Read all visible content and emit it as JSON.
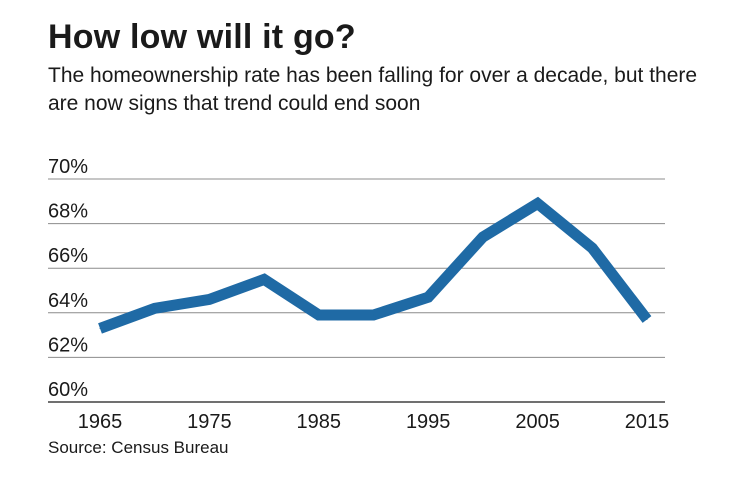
{
  "chart_data": {
    "type": "line",
    "title": "How low will it go?",
    "subtitle": "The homeownership rate has been falling for over a decade, but there are now signs that trend could end soon",
    "source": "Source: Census Bureau",
    "x": [
      1965,
      1970,
      1975,
      1980,
      1985,
      1990,
      1995,
      2000,
      2005,
      2010,
      2015
    ],
    "series": [
      {
        "values": [
          63.3,
          64.2,
          64.6,
          65.5,
          63.9,
          63.9,
          64.7,
          67.4,
          68.9,
          66.9,
          63.7
        ]
      }
    ],
    "ylim": [
      60,
      70
    ],
    "yticks": [
      60,
      62,
      64,
      66,
      68,
      70
    ],
    "ytick_labels": [
      "60%",
      "62%",
      "64%",
      "66%",
      "68%",
      "70%"
    ],
    "xticks": [
      1965,
      1975,
      1985,
      1995,
      2005,
      2015
    ],
    "xtick_labels": [
      "1965",
      "1975",
      "1985",
      "1995",
      "2005",
      "2015"
    ],
    "grid": true,
    "line_color": "#1f6aa5",
    "grid_color": "#8c8c8c"
  }
}
